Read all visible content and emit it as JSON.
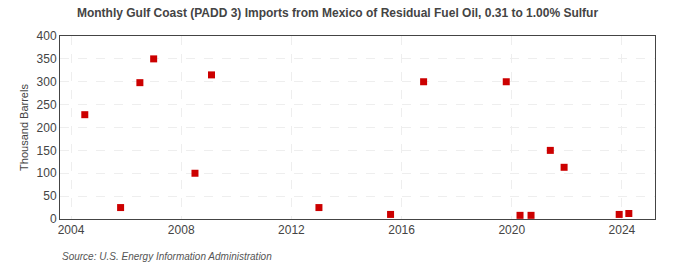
{
  "chart_data": {
    "type": "scatter",
    "title": "Monthly Gulf Coast (PADD 3) Imports from Mexico of Residual Fuel Oil, 0.31 to 1.00% Sulfur",
    "y_label": "Thousand Barrels",
    "annotations": [
      "Source: U.S. Energy Information Administration"
    ],
    "x": [
      2004.5,
      2005.8,
      2006.5,
      2007.0,
      2008.5,
      2009.1,
      2013.0,
      2015.6,
      2016.8,
      2019.8,
      2020.3,
      2020.7,
      2021.4,
      2021.9,
      2023.9,
      2024.25
    ],
    "values": [
      228,
      25,
      298,
      350,
      100,
      315,
      25,
      10,
      300,
      300,
      8,
      8,
      150,
      113,
      10,
      12
    ],
    "color": "#cc0000",
    "marker": "square",
    "xlim": [
      2003.6,
      2025.2
    ],
    "xticks": [
      2004,
      2008,
      2012,
      2016,
      2020,
      2024
    ],
    "ylim": [
      0,
      400
    ],
    "yticks": [
      0,
      50,
      100,
      150,
      200,
      250,
      300,
      350,
      400
    ],
    "grid": true
  }
}
